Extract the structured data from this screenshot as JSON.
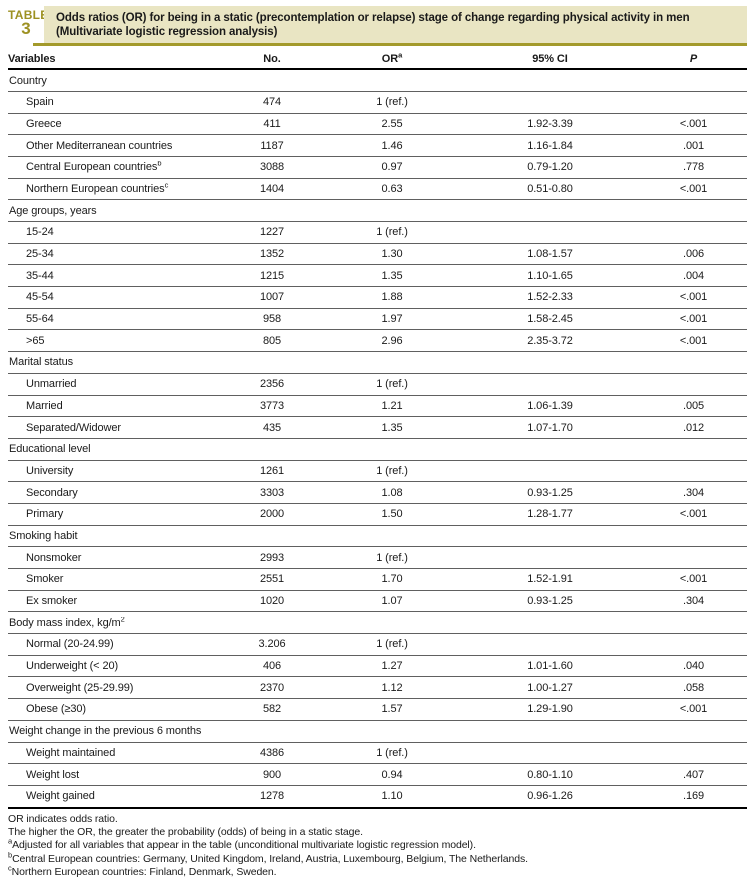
{
  "header": {
    "label_top": "TABLE",
    "label_num": "3",
    "title_line1": "Odds ratios (OR) for being in a static (precontemplation or relapse) stage of change regarding physical activity in men",
    "title_line2": "(Multivariate logistic regression analysis)"
  },
  "colors": {
    "title_bar_bg": "#e9e5c3",
    "olive_accent": "#a39a2b",
    "label_text": "#9d9122"
  },
  "columns": [
    {
      "label": "Variables"
    },
    {
      "label": "No."
    },
    {
      "label": "OR",
      "sup": "a"
    },
    {
      "label": "95% CI"
    },
    {
      "label": "P"
    }
  ],
  "sections": [
    {
      "header": "Country",
      "rows": [
        {
          "label": "Spain",
          "no": "474",
          "or": "1 (ref.)",
          "ci": "",
          "p": ""
        },
        {
          "label": "Greece",
          "no": "411",
          "or": "2.55",
          "ci": "1.92-3.39",
          "p": "<.001"
        },
        {
          "label": "Other Mediterranean countries",
          "no": "1187",
          "or": "1.46",
          "ci": "1.16-1.84",
          "p": ".001"
        },
        {
          "label": "Central European countries",
          "sup": "b",
          "no": "3088",
          "or": "0.97",
          "ci": "0.79-1.20",
          "p": ".778"
        },
        {
          "label": "Northern European countries",
          "sup": "c",
          "no": "1404",
          "or": "0.63",
          "ci": "0.51-0.80",
          "p": "<.001"
        }
      ]
    },
    {
      "header": "Age groups, years",
      "rows": [
        {
          "label": "15-24",
          "no": "1227",
          "or": "1 (ref.)",
          "ci": "",
          "p": ""
        },
        {
          "label": "25-34",
          "no": "1352",
          "or": "1.30",
          "ci": "1.08-1.57",
          "p": ".006"
        },
        {
          "label": "35-44",
          "no": "1215",
          "or": "1.35",
          "ci": "1.10-1.65",
          "p": ".004"
        },
        {
          "label": "45-54",
          "no": "1007",
          "or": "1.88",
          "ci": "1.52-2.33",
          "p": "<.001"
        },
        {
          "label": "55-64",
          "no": "958",
          "or": "1.97",
          "ci": "1.58-2.45",
          "p": "<.001"
        },
        {
          "label": ">65",
          "no": "805",
          "or": "2.96",
          "ci": "2.35-3.72",
          "p": "<.001"
        }
      ]
    },
    {
      "header": "Marital status",
      "rows": [
        {
          "label": "Unmarried",
          "no": "2356",
          "or": "1 (ref.)",
          "ci": "",
          "p": ""
        },
        {
          "label": "Married",
          "no": "3773",
          "or": "1.21",
          "ci": "1.06-1.39",
          "p": ".005"
        },
        {
          "label": "Separated/Widower",
          "no": "435",
          "or": "1.35",
          "ci": "1.07-1.70",
          "p": ".012"
        }
      ]
    },
    {
      "header": "Educational level",
      "rows": [
        {
          "label": "University",
          "no": "1261",
          "or": "1 (ref.)",
          "ci": "",
          "p": ""
        },
        {
          "label": "Secondary",
          "no": "3303",
          "or": "1.08",
          "ci": "0.93-1.25",
          "p": ".304"
        },
        {
          "label": "Primary",
          "no": "2000",
          "or": "1.50",
          "ci": "1.28-1.77",
          "p": "<.001"
        }
      ]
    },
    {
      "header": "Smoking habit",
      "rows": [
        {
          "label": "Nonsmoker",
          "no": "2993",
          "or": "1 (ref.)",
          "ci": "",
          "p": ""
        },
        {
          "label": "Smoker",
          "no": "2551",
          "or": "1.70",
          "ci": "1.52-1.91",
          "p": "<.001"
        },
        {
          "label": "Ex smoker",
          "no": "1020",
          "or": "1.07",
          "ci": "0.93-1.25",
          "p": ".304"
        }
      ]
    },
    {
      "header": "Body mass index, kg/m",
      "header_sup": "2",
      "rows": [
        {
          "label": "Normal (20-24.99)",
          "no": "3.206",
          "or": "1 (ref.)",
          "ci": "",
          "p": ""
        },
        {
          "label": "Underweight (< 20)",
          "no": "406",
          "or": "1.27",
          "ci": "1.01-1.60",
          "p": ".040"
        },
        {
          "label": "Overweight (25-29.99)",
          "no": "2370",
          "or": "1.12",
          "ci": "1.00-1.27",
          "p": ".058"
        },
        {
          "label": "Obese (≥30)",
          "no": "582",
          "or": "1.57",
          "ci": "1.29-1.90",
          "p": "<.001"
        }
      ]
    },
    {
      "header": "Weight change in the previous 6 months",
      "rows": [
        {
          "label": "Weight maintained",
          "no": "4386",
          "or": "1 (ref.)",
          "ci": "",
          "p": ""
        },
        {
          "label": "Weight lost",
          "no": "900",
          "or": "0.94",
          "ci": "0.80-1.10",
          "p": ".407"
        },
        {
          "label": "Weight gained",
          "no": "1278",
          "or": "1.10",
          "ci": "0.96-1.26",
          "p": ".169"
        }
      ]
    }
  ],
  "footnotes": [
    {
      "sup": "",
      "text": "OR indicates odds ratio."
    },
    {
      "sup": "",
      "text": "The higher the OR, the greater the probability (odds) of being in a static stage."
    },
    {
      "sup": "a",
      "text": "Adjusted for all variables that appear in the table (unconditional multivariate logistic regression model)."
    },
    {
      "sup": "b",
      "text": "Central European countries: Germany, United Kingdom, Ireland, Austria, Luxembourg, Belgium, The Netherlands."
    },
    {
      "sup": "c",
      "text": "Northern European countries: Finland, Denmark, Sweden."
    }
  ]
}
